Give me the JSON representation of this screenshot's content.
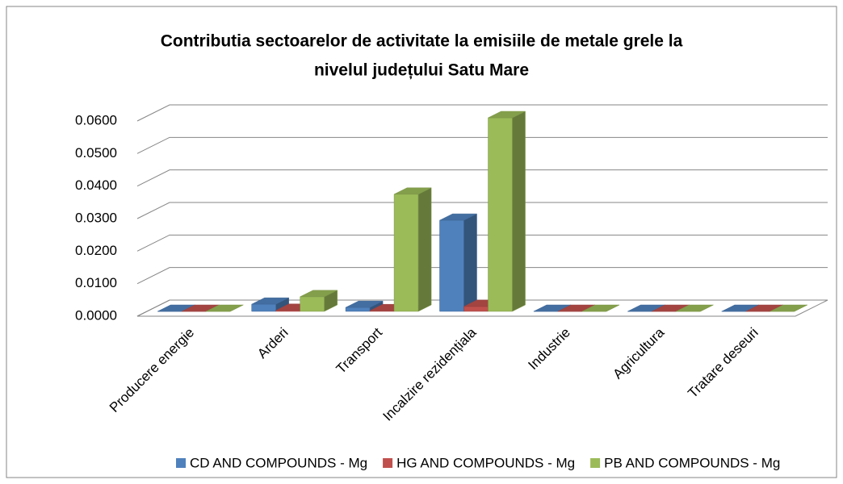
{
  "chart_data": {
    "type": "bar3d",
    "title": [
      "Contributia sectoarelor de activitate la emisiile de metale grele la",
      "nivelul  județului Satu Mare"
    ],
    "categories": [
      "Producere energie",
      "Arderi",
      "Transport",
      "Incalzire rezidențiala",
      "Industrie",
      "Agricultura",
      "Tratare deseuri"
    ],
    "series": [
      {
        "name": "CD AND COMPOUNDS - Mg",
        "color": "#4f81bd",
        "values": [
          0,
          0.0022,
          0.0012,
          0.028,
          0,
          0,
          0
        ]
      },
      {
        "name": "HG AND COMPOUNDS - Mg",
        "color": "#c0504d",
        "values": [
          0,
          0.0003,
          0.0002,
          0.0015,
          0,
          0,
          0
        ]
      },
      {
        "name": "PB AND COMPOUNDS - Mg",
        "color": "#9bbb59",
        "values": [
          0,
          0.0045,
          0.036,
          0.0595,
          0,
          0,
          0
        ]
      }
    ],
    "ylim": [
      0,
      0.06
    ],
    "yticks": [
      {
        "value": 0,
        "label": "0.0000"
      },
      {
        "value": 0.01,
        "label": "0.0100"
      },
      {
        "value": 0.02,
        "label": "0.0200"
      },
      {
        "value": 0.03,
        "label": "0.0300"
      },
      {
        "value": 0.04,
        "label": "0.0400"
      },
      {
        "value": 0.05,
        "label": "0.0500"
      },
      {
        "value": 0.06,
        "label": "0.0600"
      }
    ],
    "grid": true,
    "legend": "bottom"
  }
}
